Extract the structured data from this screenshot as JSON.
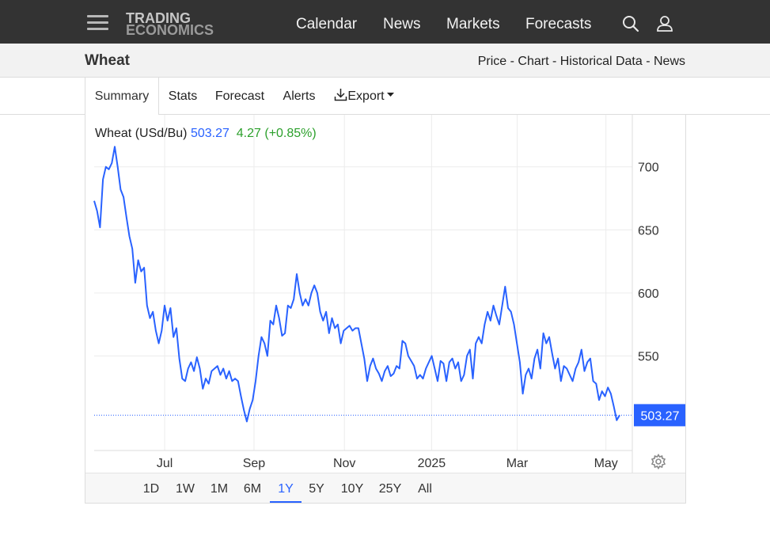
{
  "topbar": {
    "logo_line1": "TRADING",
    "logo_line2": "ECONOMICS",
    "nav": [
      "Calendar",
      "News",
      "Markets",
      "Forecasts"
    ],
    "icons": [
      "menu-icon",
      "search-icon",
      "user-icon"
    ]
  },
  "subheader": {
    "title": "Wheat",
    "links": [
      "Price",
      "Chart",
      "Historical Data",
      "News"
    ],
    "separator": " - "
  },
  "tabs": {
    "items": [
      "Summary",
      "Stats",
      "Forecast",
      "Alerts",
      "Export"
    ],
    "active": "Summary",
    "export_icon": "download-icon"
  },
  "legend": {
    "name": "Wheat (USd/Bu)",
    "price": "503.27",
    "change": "4.27",
    "change_pct": "(+0.85%)",
    "change_color": "#2ca02c",
    "price_color": "#2962ff"
  },
  "ranges": {
    "items": [
      "1D",
      "1W",
      "1M",
      "6M",
      "1Y",
      "5Y",
      "10Y",
      "25Y",
      "All"
    ],
    "active": "1Y"
  },
  "chart_data": {
    "type": "line",
    "series": [
      {
        "name": "Wheat (USd/Bu)",
        "color": "#2962ff",
        "values": [
          673,
          665,
          652,
          690,
          700,
          698,
          703,
          716,
          700,
          682,
          676,
          660,
          645,
          635,
          608,
          626,
          617,
          620,
          590,
          580,
          585,
          570,
          560,
          570,
          590,
          578,
          588,
          565,
          572,
          548,
          532,
          530,
          540,
          545,
          538,
          549,
          540,
          524,
          532,
          528,
          538,
          540,
          542,
          535,
          540,
          532,
          538,
          530,
          532,
          530,
          518,
          507,
          498,
          508,
          515,
          530,
          550,
          565,
          560,
          550,
          578,
          575,
          590,
          580,
          566,
          568,
          590,
          588,
          595,
          615,
          600,
          590,
          595,
          590,
          600,
          606,
          600,
          585,
          578,
          585,
          568,
          580,
          572,
          575,
          560,
          570,
          572,
          574,
          570,
          572,
          572,
          560,
          548,
          530,
          542,
          548,
          540,
          536,
          530,
          538,
          542,
          534,
          536,
          542,
          540,
          562,
          560,
          550,
          546,
          542,
          532,
          535,
          532,
          540,
          545,
          550,
          540,
          530,
          546,
          544,
          530,
          545,
          548,
          540,
          545,
          530,
          535,
          550,
          555,
          532,
          560,
          565,
          560,
          575,
          585,
          578,
          590,
          582,
          575,
          590,
          605,
          588,
          585,
          575,
          560,
          545,
          520,
          535,
          540,
          532,
          548,
          555,
          540,
          568,
          560,
          565,
          552,
          540,
          548,
          530,
          542,
          540,
          535,
          530,
          540,
          545,
          555,
          538,
          545,
          548,
          530,
          528,
          515,
          522,
          518,
          525,
          520,
          510,
          499,
          503
        ]
      }
    ],
    "x_ticks": [
      "Jul",
      "Sep",
      "Nov",
      "2025",
      "Mar",
      "May"
    ],
    "y_ticks": [
      550,
      600,
      650,
      700
    ],
    "ylim": [
      475,
      735
    ],
    "last_value_label": "503.27",
    "grid": true,
    "legend_placement": "top-left"
  }
}
